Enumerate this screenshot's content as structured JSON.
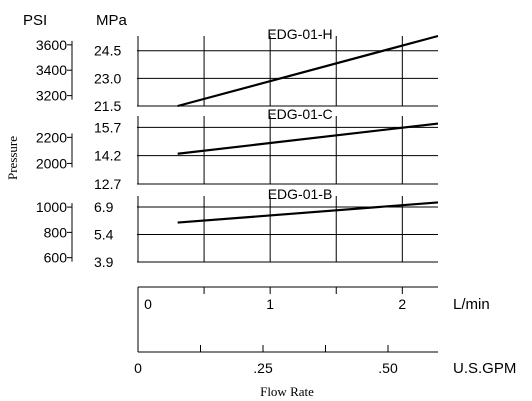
{
  "chart_data": {
    "type": "line",
    "ylabel": "Pressure",
    "xlabel": "Flow Rate",
    "units": {
      "psi": "PSI",
      "mpa": "MPa",
      "lpm": "L/min",
      "gpm": "U.S.GPM"
    },
    "x_lpm": {
      "ticks": [
        "0",
        "1",
        "2"
      ],
      "range": [
        0,
        2.27
      ]
    },
    "x_gpm": {
      "ticks": [
        "0",
        ".25",
        ".50"
      ],
      "range": [
        0,
        0.6
      ]
    },
    "panels": [
      {
        "name": "EDG-01-H",
        "psi_ticks": [
          "3600",
          "3400",
          "3200"
        ],
        "psi_values": [
          3600,
          3400,
          3200
        ],
        "mpa_ticks": [
          "24.5",
          "23.0",
          "21.5"
        ],
        "mpa_values": [
          24.5,
          23.0,
          21.5
        ],
        "mpa_range": [
          21.5,
          25.3
        ],
        "x": [
          0.3,
          2.27
        ],
        "y": [
          21.5,
          25.3
        ]
      },
      {
        "name": "EDG-01-C",
        "psi_ticks": [
          "2200",
          "2000"
        ],
        "psi_values": [
          2200,
          2000
        ],
        "mpa_ticks": [
          "15.7",
          "14.2",
          "12.7"
        ],
        "mpa_values": [
          15.7,
          14.2,
          12.7
        ],
        "mpa_range": [
          12.7,
          16.3
        ],
        "x": [
          0.3,
          2.27
        ],
        "y": [
          14.3,
          15.9
        ]
      },
      {
        "name": "EDG-01-B",
        "psi_ticks": [
          "1000",
          "800",
          "600"
        ],
        "psi_values": [
          1000,
          800,
          600
        ],
        "mpa_ticks": [
          "6.9",
          "5.4",
          "3.9"
        ],
        "mpa_values": [
          6.9,
          5.4,
          3.9
        ],
        "mpa_range": [
          3.9,
          7.5
        ],
        "x": [
          0.3,
          2.27
        ],
        "y": [
          6.05,
          7.15
        ]
      }
    ]
  }
}
